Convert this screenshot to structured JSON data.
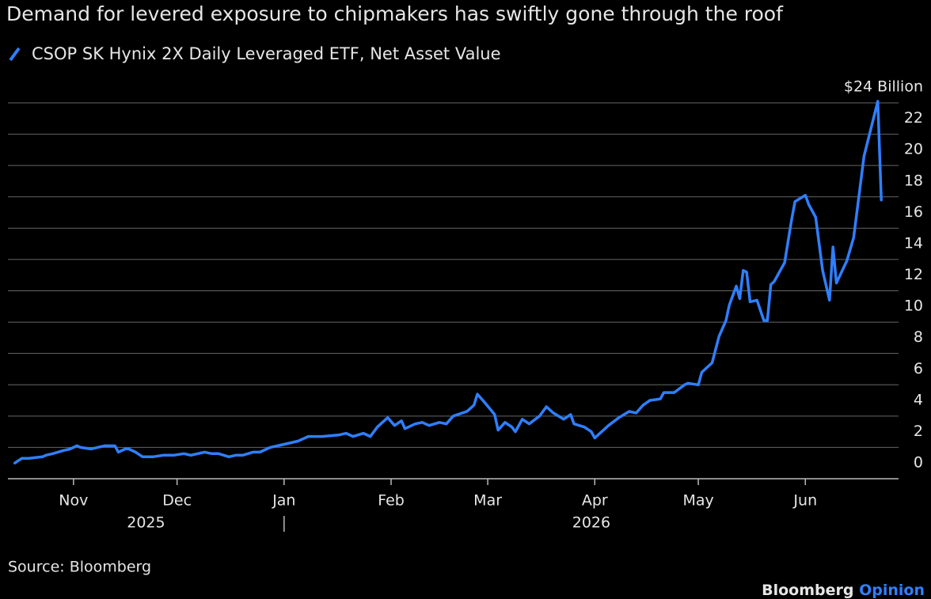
{
  "chart_data": {
    "type": "line",
    "title": "Demand for levered exposure to chipmakers has swiftly gone through the roof",
    "source": "Source: Bloomberg",
    "xlim": [
      -19,
      239
    ],
    "xticks": [
      {
        "value": 0,
        "label": "Nov"
      },
      {
        "value": 30,
        "label": "Dec"
      },
      {
        "value": 61,
        "label": "Jan"
      },
      {
        "value": 92,
        "label": "Feb"
      },
      {
        "value": 120,
        "label": "Mar"
      },
      {
        "value": 151,
        "label": "Apr"
      },
      {
        "value": 181,
        "label": "May"
      },
      {
        "value": 212,
        "label": "Jun"
      }
    ],
    "year_labels": [
      "2025",
      "2026"
    ],
    "ylim": [
      0,
      24
    ],
    "yticks": [
      0,
      2,
      4,
      6,
      8,
      10,
      12,
      14,
      16,
      18,
      20,
      22,
      {
        "value": 24,
        "label": "$24 Billion"
      }
    ],
    "grid": true,
    "x": [
      -17,
      -15,
      -13,
      -9,
      -8,
      -6,
      -3,
      -1,
      1,
      2,
      5,
      7,
      9,
      10,
      12,
      13,
      15,
      16,
      18,
      20,
      23,
      26,
      29,
      32,
      34,
      38,
      40,
      42,
      45,
      47,
      49,
      52,
      54,
      57,
      61,
      65,
      68,
      70,
      72,
      77,
      79,
      81,
      84,
      86,
      88,
      91,
      93,
      95,
      96,
      99,
      101,
      103,
      106,
      108,
      110,
      114,
      116,
      117,
      119,
      122,
      123,
      125,
      127,
      128,
      130,
      132,
      135,
      137,
      139,
      142,
      144,
      145,
      148,
      150,
      151,
      153,
      155,
      158,
      161,
      163,
      165,
      167,
      170,
      171,
      174,
      177,
      178,
      181,
      182,
      185,
      187,
      189,
      190,
      191,
      192,
      193,
      194,
      195,
      196,
      198,
      200,
      201,
      202,
      203,
      205,
      206,
      208,
      209,
      212,
      213,
      215,
      217,
      219,
      220,
      221,
      224,
      226,
      229,
      233,
      234
    ],
    "series": [
      {
        "name": "CSOP SK Hynix 2X Daily Leveraged ETF, Net Asset Value",
        "color": "#2f7fff",
        "values": [
          1.0,
          1.3,
          1.3,
          1.4,
          1.5,
          1.6,
          1.8,
          1.9,
          2.1,
          2.0,
          1.9,
          2.0,
          2.1,
          2.1,
          2.1,
          1.7,
          1.9,
          1.9,
          1.7,
          1.4,
          1.4,
          1.5,
          1.5,
          1.6,
          1.5,
          1.7,
          1.6,
          1.6,
          1.4,
          1.5,
          1.5,
          1.7,
          1.7,
          2.0,
          2.2,
          2.4,
          2.7,
          2.7,
          2.7,
          2.8,
          2.9,
          2.7,
          2.9,
          2.7,
          3.3,
          3.9,
          3.4,
          3.7,
          3.2,
          3.5,
          3.6,
          3.4,
          3.6,
          3.5,
          4.0,
          4.3,
          4.7,
          5.4,
          4.9,
          4.1,
          3.1,
          3.6,
          3.3,
          3.0,
          3.8,
          3.5,
          4.0,
          4.6,
          4.2,
          3.8,
          4.1,
          3.5,
          3.3,
          3.0,
          2.6,
          3.0,
          3.4,
          3.9,
          4.3,
          4.2,
          4.7,
          5.0,
          5.1,
          5.5,
          5.5,
          6.0,
          6.1,
          6.0,
          6.8,
          7.4,
          9.1,
          10.1,
          11.1,
          11.7,
          12.3,
          11.5,
          13.3,
          13.2,
          11.3,
          11.4,
          10.1,
          10.1,
          12.4,
          12.6,
          13.4,
          13.8,
          16.5,
          17.7,
          18.1,
          17.5,
          16.7,
          13.3,
          11.4,
          14.8,
          12.5,
          13.9,
          15.4,
          20.6,
          24.1,
          17.8
        ]
      }
    ]
  },
  "branding": [
    "Bloomberg",
    "Opinion"
  ]
}
